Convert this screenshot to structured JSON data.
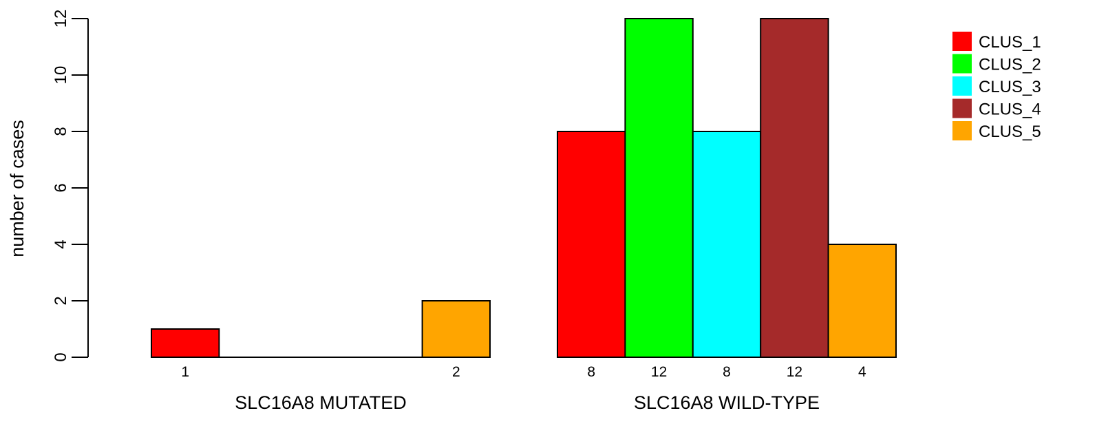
{
  "chart_data": {
    "type": "bar",
    "ylabel": "number of cases",
    "xlabel": "",
    "ylim": [
      0,
      12
    ],
    "yticks": [
      0,
      2,
      4,
      6,
      8,
      10,
      12
    ],
    "groups": [
      "SLC16A8 MUTATED",
      "SLC16A8 WILD-TYPE"
    ],
    "series": [
      {
        "name": "CLUS_1",
        "color": "#ff0000",
        "values": [
          1,
          8
        ]
      },
      {
        "name": "CLUS_2",
        "color": "#00ff00",
        "values": [
          0,
          12
        ]
      },
      {
        "name": "CLUS_3",
        "color": "#00ffff",
        "values": [
          0,
          8
        ]
      },
      {
        "name": "CLUS_4",
        "color": "#a52a2a",
        "values": [
          0,
          12
        ]
      },
      {
        "name": "CLUS_5",
        "color": "#ffa500",
        "values": [
          2,
          4
        ]
      }
    ],
    "legend_position": "top-right",
    "grid": false
  }
}
